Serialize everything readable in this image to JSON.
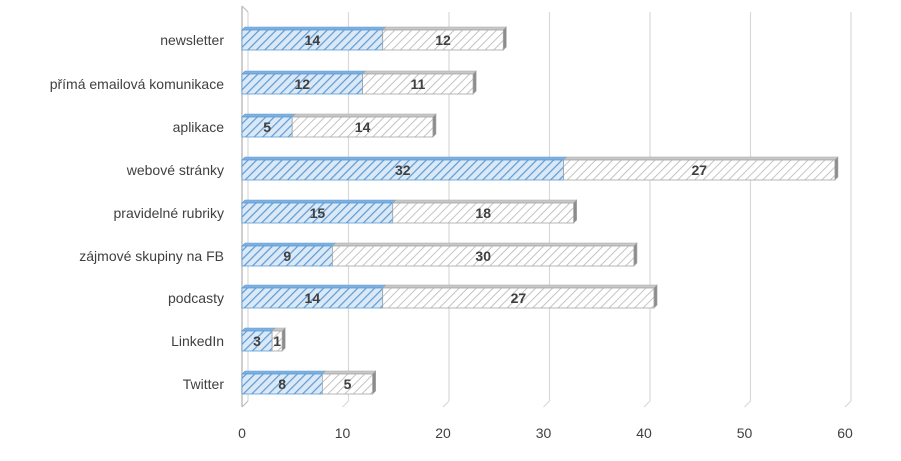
{
  "chart_data": {
    "type": "bar",
    "orientation": "horizontal",
    "stacked": true,
    "categories": [
      "newsletter",
      "přímá emailová komunikace",
      "aplikace",
      "webové stránky",
      "pravidelné rubriky",
      "zájmové skupiny na FB",
      "podcasty",
      "LinkedIn",
      "Twitter"
    ],
    "series": [
      {
        "values": [
          14,
          12,
          5,
          32,
          15,
          9,
          14,
          3,
          8
        ],
        "color": "#5b9bd5"
      },
      {
        "values": [
          12,
          11,
          14,
          27,
          18,
          30,
          27,
          1,
          5
        ],
        "color": "#a6a6a6"
      }
    ],
    "xlim": [
      0,
      60
    ],
    "xticks": [
      "0",
      "10",
      "20",
      "30",
      "40",
      "50",
      "60"
    ],
    "grid": true,
    "legend": "none"
  }
}
